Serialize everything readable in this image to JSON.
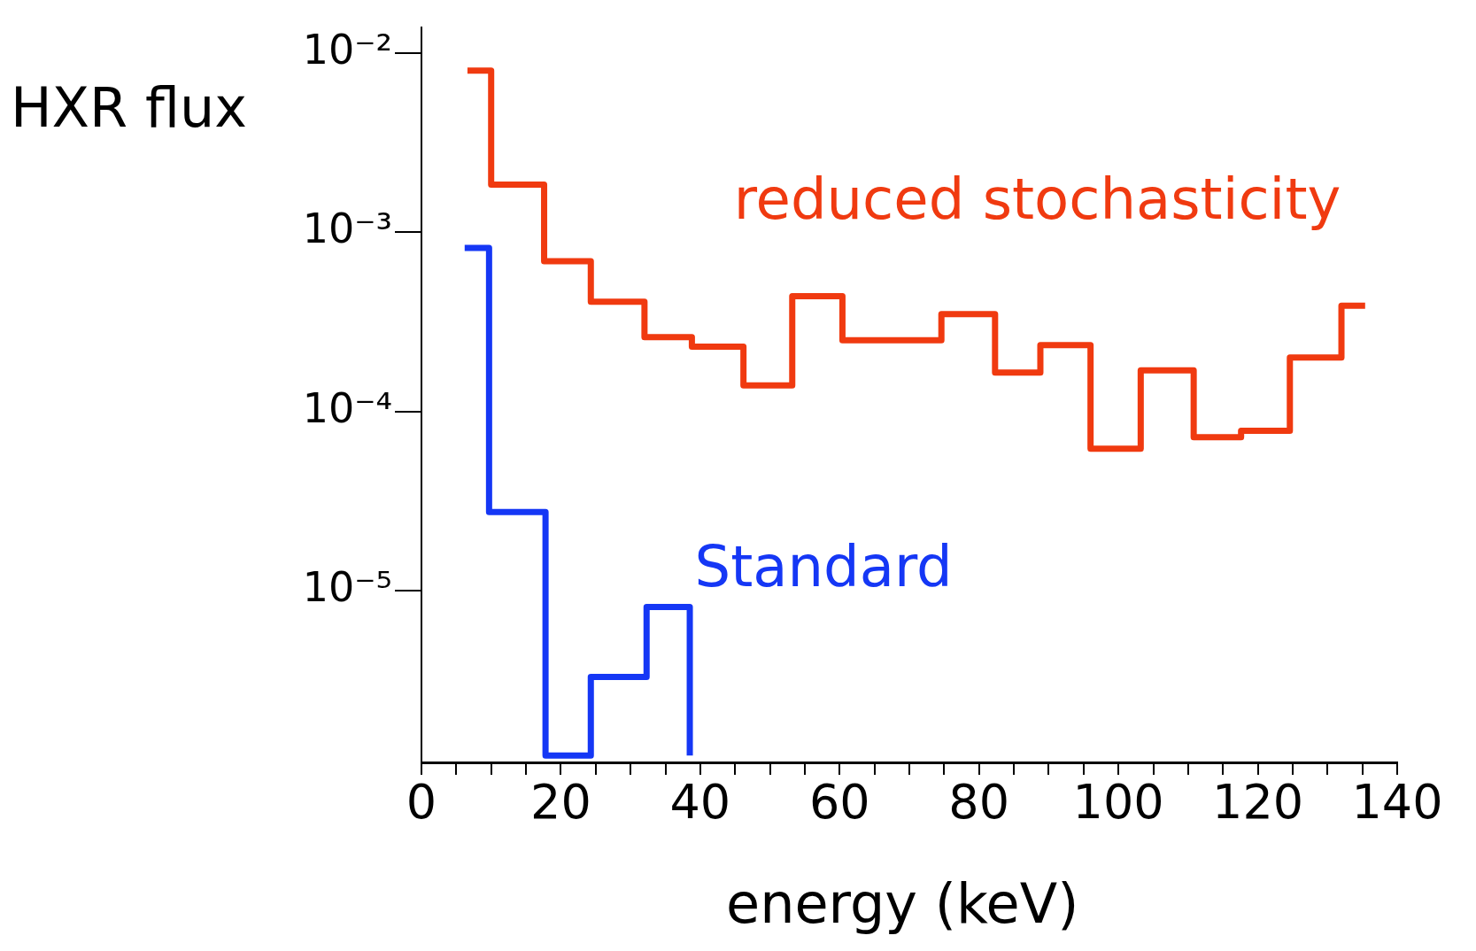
{
  "chart_data": {
    "type": "step",
    "xlabel": "energy (keV)",
    "ylabel": "HXR flux",
    "log": "y",
    "xlim": [
      0,
      140
    ],
    "ylim": [
      1.1e-06,
      0.014
    ],
    "xticks": [
      0,
      {
        "value": 5,
        "label": null
      },
      {
        "value": 10,
        "label": null
      },
      {
        "value": 15,
        "label": null
      },
      20,
      {
        "value": 25,
        "label": null
      },
      {
        "value": 30,
        "label": null
      },
      {
        "value": 35,
        "label": null
      },
      40,
      {
        "value": 45,
        "label": null
      },
      {
        "value": 50,
        "label": null
      },
      {
        "value": 55,
        "label": null
      },
      60,
      {
        "value": 65,
        "label": null
      },
      {
        "value": 70,
        "label": null
      },
      {
        "value": 75,
        "label": null
      },
      80,
      {
        "value": 85,
        "label": null
      },
      {
        "value": 90,
        "label": null
      },
      {
        "value": 95,
        "label": null
      },
      100,
      {
        "value": 105,
        "label": null
      },
      {
        "value": 110,
        "label": null
      },
      {
        "value": 115,
        "label": null
      },
      120,
      {
        "value": 125,
        "label": null
      },
      {
        "value": 130,
        "label": null
      },
      {
        "value": 135,
        "label": null
      },
      140
    ],
    "yticks": [
      {
        "value": 0.01,
        "label": "10⁻²"
      },
      {
        "value": 0.001,
        "label": "10⁻³"
      },
      {
        "value": 0.0001,
        "label": "10⁻⁴"
      },
      {
        "value": 1e-05,
        "label": "10⁻⁵"
      }
    ],
    "grid": false,
    "legend": false,
    "marker": "none",
    "line_style": "solid",
    "series": [
      {
        "name": "reduced stochasticity",
        "color": "#f03a10",
        "x": [
          6.6,
          10,
          17.6,
          24.3,
          32,
          38.8,
          46.2,
          53.2,
          60.4,
          74.6,
          82.3,
          88.8,
          96,
          103.2,
          110.8,
          117.6,
          124.6,
          132,
          135.4
        ],
        "values": [
          0.008,
          0.00185,
          0.00069,
          0.00041,
          0.00026,
          0.00023,
          0.00014,
          0.00044,
          0.00025,
          0.00035,
          0.000165,
          0.000235,
          6.2e-05,
          0.00017,
          7.2e-05,
          7.8e-05,
          0.0002,
          0.00039,
          0.00039
        ]
      },
      {
        "name": "Standard",
        "color": "#1537f5",
        "x": [
          6.2,
          9.7,
          17.8,
          24.3,
          32.3,
          38.5
        ],
        "values": [
          0.00082,
          2.75e-05,
          1.2e-06,
          3.3e-06,
          8.1e-06,
          1.2e-06
        ]
      }
    ]
  }
}
